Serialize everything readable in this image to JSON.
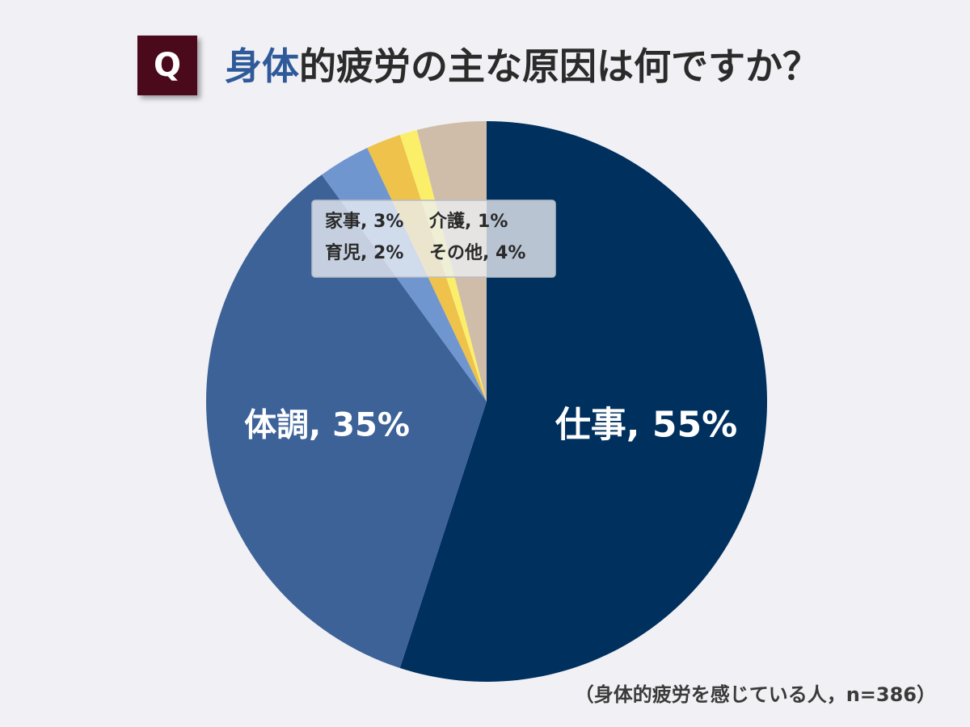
{
  "header": {
    "badge": "Q",
    "title_highlight": "身体",
    "title_rest": "的疲労の主な原因は何ですか？"
  },
  "note": "（身体的疲労を感じている人，n=386）",
  "chart_data": {
    "type": "pie",
    "title": "身体的疲労の主な原因は何ですか？",
    "labels": [
      "仕事",
      "体調",
      "家事",
      "育児",
      "介護",
      "その他"
    ],
    "values": [
      55,
      35,
      3,
      2,
      1,
      4
    ],
    "unit": "%",
    "colors": [
      "#00305e",
      "#3d6298",
      "#7096cf",
      "#eec24b",
      "#fbef6a",
      "#cfbda9"
    ],
    "slice_labels": [
      "仕事, 55%",
      "体調, 35%",
      "家事, 3%",
      "育児, 2%",
      "介護, 1%",
      "その他, 4%"
    ],
    "callout_lines": [
      [
        "家事, 3%",
        "介護, 1%"
      ],
      [
        "育児, 2%",
        "その他, 4%"
      ]
    ]
  }
}
